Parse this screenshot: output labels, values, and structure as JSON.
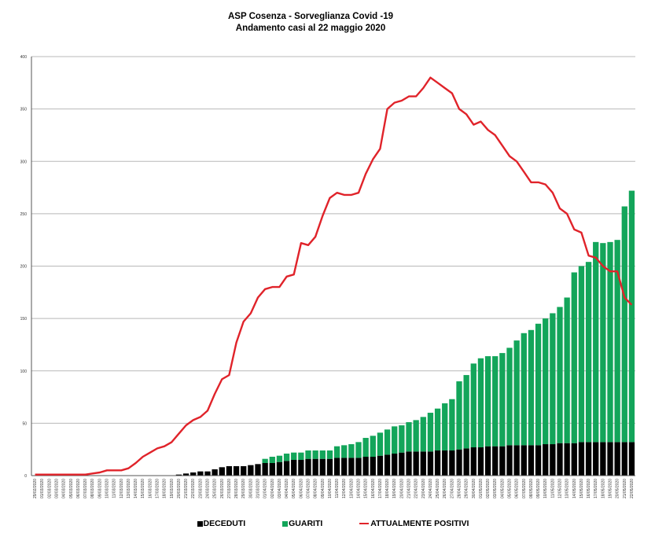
{
  "title": "ASP Cosenza - Sorveglianza Covid -19",
  "subtitle": "Andamento casi al 22 maggio 2020",
  "colors": {
    "deceduti": "#000000",
    "guariti": "#13a55a",
    "positivi": "#e0232a",
    "grid": "#b8b8b8"
  },
  "legend": [
    {
      "name": "DECEDUTI",
      "marker": "square",
      "color": "#000000"
    },
    {
      "name": "GUARITI",
      "marker": "square",
      "color": "#13a55a"
    },
    {
      "name": "ATTUALMENTE POSITIVI",
      "marker": "line",
      "color": "#e0232a"
    }
  ],
  "chart_data": {
    "type": "bar",
    "stacked": true,
    "title": "ASP Cosenza - Sorveglianza Covid -19",
    "subtitle": "Andamento casi al 22 maggio 2020",
    "ylim": [
      0,
      400
    ],
    "yticks": [
      0,
      50,
      100,
      150,
      200,
      250,
      300,
      350,
      400
    ],
    "grid": true,
    "legend_position": "bottom",
    "categories": [
      "29/02/2020",
      "01/03/2020",
      "02/03/2020",
      "03/03/2020",
      "04/03/2020",
      "05/03/2020",
      "06/03/2020",
      "07/03/2020",
      "08/03/2020",
      "09/03/2020",
      "10/03/2020",
      "11/03/2020",
      "12/03/2020",
      "13/03/2020",
      "14/03/2020",
      "15/03/2020",
      "16/03/2020",
      "17/03/2020",
      "18/03/2020",
      "19/03/2020",
      "20/03/2020",
      "21/03/2020",
      "22/03/2020",
      "23/03/2020",
      "24/03/2020",
      "25/03/2020",
      "26/03/2020",
      "27/03/2020",
      "28/03/2020",
      "29/03/2020",
      "30/03/2020",
      "31/03/2020",
      "01/04/2020",
      "02/04/2020",
      "03/04/2020",
      "04/04/2020",
      "05/04/2020",
      "06/04/2020",
      "07/04/2020",
      "08/04/2020",
      "09/04/2020",
      "10/04/2020",
      "11/04/2020",
      "12/04/2020",
      "13/04/2020",
      "14/04/2020",
      "15/04/2020",
      "16/04/2020",
      "17/04/2020",
      "18/04/2020",
      "19/04/2020",
      "20/04/2020",
      "21/04/2020",
      "22/04/2020",
      "23/04/2020",
      "24/04/2020",
      "25/04/2020",
      "26/04/2020",
      "27/04/2020",
      "28/04/2020",
      "29/04/2020",
      "30/04/2020",
      "01/05/2020",
      "02/05/2020",
      "03/05/2020",
      "04/05/2020",
      "05/05/2020",
      "06/05/2020",
      "07/05/2020",
      "08/05/2020",
      "09/05/2020",
      "10/05/2020",
      "11/05/2020",
      "12/05/2020",
      "13/05/2020",
      "14/05/2020",
      "15/05/2020",
      "16/05/2020",
      "17/05/2020",
      "18/05/2020",
      "19/05/2020",
      "20/05/2020",
      "21/05/2020",
      "22/05/2020"
    ],
    "series": [
      {
        "name": "DECEDUTI",
        "kind": "bar",
        "values": [
          0,
          0,
          0,
          0,
          0,
          0,
          0,
          0,
          0,
          0,
          0,
          0,
          0,
          0,
          0,
          0,
          0,
          0,
          0,
          0,
          1,
          2,
          3,
          4,
          4,
          6,
          8,
          9,
          9,
          9,
          10,
          11,
          12,
          12,
          13,
          14,
          15,
          15,
          16,
          16,
          16,
          16,
          17,
          17,
          17,
          17,
          18,
          18,
          19,
          20,
          21,
          22,
          23,
          23,
          23,
          23,
          24,
          24,
          24,
          25,
          26,
          27,
          27,
          28,
          28,
          28,
          29,
          29,
          29,
          29,
          29,
          30,
          30,
          31,
          31,
          31,
          32,
          32,
          32,
          32,
          32,
          32,
          32,
          32
        ]
      },
      {
        "name": "GUARITI",
        "kind": "bar",
        "values": [
          0,
          0,
          0,
          0,
          0,
          0,
          0,
          0,
          0,
          0,
          0,
          0,
          0,
          0,
          0,
          0,
          0,
          0,
          0,
          0,
          0,
          0,
          0,
          0,
          0,
          0,
          0,
          0,
          0,
          0,
          0,
          0,
          4,
          6,
          6,
          7,
          7,
          7,
          8,
          8,
          8,
          8,
          11,
          12,
          13,
          15,
          18,
          20,
          22,
          24,
          26,
          26,
          28,
          30,
          33,
          37,
          40,
          45,
          49,
          65,
          70,
          80,
          85,
          86,
          86,
          89,
          93,
          100,
          107,
          110,
          116,
          120,
          125,
          130,
          139,
          163,
          168,
          172,
          191,
          190,
          191,
          193,
          225,
          240
        ]
      },
      {
        "name": "ATTUALMENTE POSITIVI",
        "kind": "line",
        "values": [
          1,
          1,
          1,
          1,
          1,
          1,
          1,
          1,
          2,
          3,
          5,
          5,
          5,
          7,
          12,
          18,
          22,
          26,
          28,
          32,
          40,
          48,
          53,
          56,
          62,
          78,
          92,
          96,
          127,
          147,
          155,
          170,
          178,
          180,
          180,
          190,
          192,
          222,
          220,
          228,
          248,
          265,
          270,
          268,
          268,
          270,
          288,
          302,
          312,
          350,
          356,
          358,
          362,
          362,
          370,
          380,
          375,
          370,
          365,
          350,
          345,
          335,
          338,
          330,
          325,
          315,
          305,
          300,
          290,
          280,
          280,
          278,
          270,
          255,
          250,
          235,
          232,
          210,
          208,
          200,
          195,
          195,
          170,
          163
        ]
      }
    ]
  }
}
